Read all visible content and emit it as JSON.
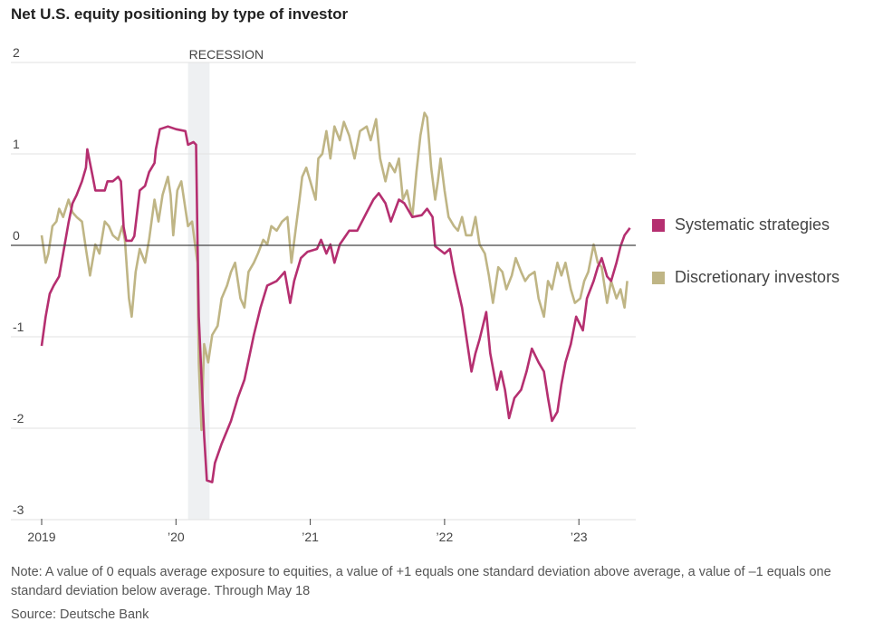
{
  "chart_data": {
    "type": "line",
    "title": "Net U.S. equity positioning by type of investor",
    "xlabel": "",
    "ylabel": "",
    "x_unit": "year",
    "xlim": [
      2019.0,
      2023.38
    ],
    "ylim": [
      -3,
      2
    ],
    "y_ticks": [
      2,
      1,
      0,
      -1,
      -2,
      -3
    ],
    "y_tick_labels": [
      "2",
      "1",
      "0",
      "-1",
      "-2",
      "-3"
    ],
    "x_ticks": [
      2019,
      2020,
      2021,
      2022,
      2023
    ],
    "x_tick_labels": [
      "2019",
      "’20",
      "’21",
      "’22",
      "’23"
    ],
    "grid": "horizontal",
    "legend_placement": "right",
    "annotation": {
      "label": "RECESSION",
      "x_start": 2020.09,
      "x_end": 2020.25,
      "color": "#eef0f2"
    },
    "zero_line_color": "#444444",
    "series": [
      {
        "name": "Systematic strategies",
        "color": "#b52f70",
        "points": [
          [
            2019.0,
            -1.1
          ],
          [
            2019.03,
            -0.78
          ],
          [
            2019.06,
            -0.53
          ],
          [
            2019.09,
            -0.44
          ],
          [
            2019.13,
            -0.34
          ],
          [
            2019.2,
            0.25
          ],
          [
            2019.23,
            0.46
          ],
          [
            2019.26,
            0.55
          ],
          [
            2019.3,
            0.7
          ],
          [
            2019.33,
            0.85
          ],
          [
            2019.34,
            1.05
          ],
          [
            2019.36,
            0.9
          ],
          [
            2019.38,
            0.75
          ],
          [
            2019.4,
            0.6
          ],
          [
            2019.47,
            0.6
          ],
          [
            2019.49,
            0.7
          ],
          [
            2019.53,
            0.7
          ],
          [
            2019.57,
            0.75
          ],
          [
            2019.59,
            0.7
          ],
          [
            2019.61,
            0.2
          ],
          [
            2019.63,
            0.05
          ],
          [
            2019.67,
            0.05
          ],
          [
            2019.69,
            0.1
          ],
          [
            2019.71,
            0.35
          ],
          [
            2019.73,
            0.6
          ],
          [
            2019.77,
            0.65
          ],
          [
            2019.8,
            0.8
          ],
          [
            2019.84,
            0.9
          ],
          [
            2019.85,
            1.05
          ],
          [
            2019.88,
            1.27
          ],
          [
            2019.94,
            1.3
          ],
          [
            2020.0,
            1.27
          ],
          [
            2020.07,
            1.25
          ],
          [
            2020.09,
            1.1
          ],
          [
            2020.13,
            1.13
          ],
          [
            2020.15,
            1.1
          ],
          [
            2020.16,
            0.1
          ],
          [
            2020.17,
            -0.78
          ],
          [
            2020.21,
            -2.08
          ],
          [
            2020.23,
            -2.57
          ],
          [
            2020.27,
            -2.59
          ],
          [
            2020.29,
            -2.38
          ],
          [
            2020.34,
            -2.17
          ],
          [
            2020.41,
            -1.92
          ],
          [
            2020.46,
            -1.67
          ],
          [
            2020.51,
            -1.47
          ],
          [
            2020.58,
            -0.98
          ],
          [
            2020.63,
            -0.68
          ],
          [
            2020.68,
            -0.44
          ],
          [
            2020.75,
            -0.39
          ],
          [
            2020.81,
            -0.29
          ],
          [
            2020.85,
            -0.63
          ],
          [
            2020.88,
            -0.39
          ],
          [
            2020.93,
            -0.14
          ],
          [
            2020.98,
            -0.07
          ],
          [
            2021.05,
            -0.04
          ],
          [
            2021.08,
            0.06
          ],
          [
            2021.12,
            -0.09
          ],
          [
            2021.15,
            0.01
          ],
          [
            2021.18,
            -0.19
          ],
          [
            2021.22,
            0.01
          ],
          [
            2021.29,
            0.16
          ],
          [
            2021.35,
            0.16
          ],
          [
            2021.42,
            0.36
          ],
          [
            2021.47,
            0.5
          ],
          [
            2021.51,
            0.57
          ],
          [
            2021.56,
            0.46
          ],
          [
            2021.6,
            0.26
          ],
          [
            2021.66,
            0.5
          ],
          [
            2021.7,
            0.46
          ],
          [
            2021.76,
            0.31
          ],
          [
            2021.83,
            0.33
          ],
          [
            2021.87,
            0.4
          ],
          [
            2021.91,
            0.31
          ],
          [
            2021.93,
            -0.01
          ],
          [
            2022.0,
            -0.09
          ],
          [
            2022.04,
            -0.04
          ],
          [
            2022.07,
            -0.29
          ],
          [
            2022.13,
            -0.68
          ],
          [
            2022.16,
            -0.98
          ],
          [
            2022.2,
            -1.38
          ],
          [
            2022.23,
            -1.18
          ],
          [
            2022.26,
            -1.03
          ],
          [
            2022.31,
            -0.73
          ],
          [
            2022.34,
            -1.18
          ],
          [
            2022.39,
            -1.58
          ],
          [
            2022.42,
            -1.38
          ],
          [
            2022.45,
            -1.58
          ],
          [
            2022.48,
            -1.89
          ],
          [
            2022.52,
            -1.67
          ],
          [
            2022.57,
            -1.58
          ],
          [
            2022.61,
            -1.38
          ],
          [
            2022.65,
            -1.13
          ],
          [
            2022.7,
            -1.28
          ],
          [
            2022.74,
            -1.38
          ],
          [
            2022.77,
            -1.67
          ],
          [
            2022.8,
            -1.92
          ],
          [
            2022.84,
            -1.82
          ],
          [
            2022.87,
            -1.52
          ],
          [
            2022.9,
            -1.28
          ],
          [
            2022.94,
            -1.08
          ],
          [
            2022.98,
            -0.78
          ],
          [
            2023.03,
            -0.93
          ],
          [
            2023.06,
            -0.58
          ],
          [
            2023.11,
            -0.39
          ],
          [
            2023.14,
            -0.24
          ],
          [
            2023.17,
            -0.14
          ],
          [
            2023.21,
            -0.34
          ],
          [
            2023.24,
            -0.39
          ],
          [
            2023.28,
            -0.19
          ],
          [
            2023.31,
            -0.01
          ],
          [
            2023.34,
            0.11
          ],
          [
            2023.38,
            0.19
          ]
        ]
      },
      {
        "name": "Discretionary investors",
        "color": "#bfb585",
        "points": [
          [
            2019.0,
            0.11
          ],
          [
            2019.03,
            -0.19
          ],
          [
            2019.05,
            -0.09
          ],
          [
            2019.08,
            0.21
          ],
          [
            2019.11,
            0.26
          ],
          [
            2019.13,
            0.4
          ],
          [
            2019.16,
            0.31
          ],
          [
            2019.2,
            0.5
          ],
          [
            2019.23,
            0.36
          ],
          [
            2019.26,
            0.31
          ],
          [
            2019.3,
            0.26
          ],
          [
            2019.33,
            -0.04
          ],
          [
            2019.36,
            -0.33
          ],
          [
            2019.4,
            0.01
          ],
          [
            2019.43,
            -0.09
          ],
          [
            2019.47,
            0.26
          ],
          [
            2019.5,
            0.21
          ],
          [
            2019.53,
            0.11
          ],
          [
            2019.57,
            0.06
          ],
          [
            2019.6,
            0.21
          ],
          [
            2019.62,
            0.06
          ],
          [
            2019.65,
            -0.58
          ],
          [
            2019.67,
            -0.78
          ],
          [
            2019.7,
            -0.29
          ],
          [
            2019.73,
            -0.04
          ],
          [
            2019.77,
            -0.19
          ],
          [
            2019.8,
            0.06
          ],
          [
            2019.84,
            0.5
          ],
          [
            2019.87,
            0.26
          ],
          [
            2019.9,
            0.55
          ],
          [
            2019.94,
            0.75
          ],
          [
            2019.96,
            0.55
          ],
          [
            2019.98,
            0.11
          ],
          [
            2020.01,
            0.6
          ],
          [
            2020.04,
            0.7
          ],
          [
            2020.07,
            0.4
          ],
          [
            2020.09,
            0.21
          ],
          [
            2020.12,
            0.26
          ],
          [
            2020.14,
            0.03
          ],
          [
            2020.16,
            -0.19
          ],
          [
            2020.17,
            -1.29
          ],
          [
            2020.19,
            -2.02
          ],
          [
            2020.21,
            -1.08
          ],
          [
            2020.24,
            -1.28
          ],
          [
            2020.27,
            -0.98
          ],
          [
            2020.31,
            -0.88
          ],
          [
            2020.34,
            -0.58
          ],
          [
            2020.38,
            -0.44
          ],
          [
            2020.41,
            -0.29
          ],
          [
            2020.44,
            -0.19
          ],
          [
            2020.48,
            -0.58
          ],
          [
            2020.51,
            -0.68
          ],
          [
            2020.54,
            -0.29
          ],
          [
            2020.58,
            -0.19
          ],
          [
            2020.61,
            -0.09
          ],
          [
            2020.65,
            0.06
          ],
          [
            2020.68,
            0.01
          ],
          [
            2020.71,
            0.21
          ],
          [
            2020.75,
            0.16
          ],
          [
            2020.79,
            0.26
          ],
          [
            2020.83,
            0.31
          ],
          [
            2020.86,
            -0.19
          ],
          [
            2020.89,
            0.16
          ],
          [
            2020.92,
            0.5
          ],
          [
            2020.94,
            0.75
          ],
          [
            2020.97,
            0.85
          ],
          [
            2021.0,
            0.7
          ],
          [
            2021.04,
            0.5
          ],
          [
            2021.06,
            0.95
          ],
          [
            2021.09,
            1.0
          ],
          [
            2021.12,
            1.25
          ],
          [
            2021.15,
            0.95
          ],
          [
            2021.18,
            1.3
          ],
          [
            2021.22,
            1.15
          ],
          [
            2021.25,
            1.35
          ],
          [
            2021.29,
            1.2
          ],
          [
            2021.33,
            0.95
          ],
          [
            2021.37,
            1.25
          ],
          [
            2021.42,
            1.3
          ],
          [
            2021.45,
            1.15
          ],
          [
            2021.49,
            1.38
          ],
          [
            2021.52,
            0.95
          ],
          [
            2021.56,
            0.7
          ],
          [
            2021.59,
            0.9
          ],
          [
            2021.63,
            0.8
          ],
          [
            2021.66,
            0.95
          ],
          [
            2021.69,
            0.5
          ],
          [
            2021.72,
            0.6
          ],
          [
            2021.76,
            0.31
          ],
          [
            2021.79,
            0.8
          ],
          [
            2021.82,
            1.2
          ],
          [
            2021.85,
            1.45
          ],
          [
            2021.87,
            1.4
          ],
          [
            2021.9,
            0.85
          ],
          [
            2021.93,
            0.5
          ],
          [
            2021.95,
            0.7
          ],
          [
            2021.97,
            0.95
          ],
          [
            2022.0,
            0.6
          ],
          [
            2022.03,
            0.31
          ],
          [
            2022.07,
            0.21
          ],
          [
            2022.1,
            0.16
          ],
          [
            2022.13,
            0.31
          ],
          [
            2022.16,
            0.11
          ],
          [
            2022.2,
            0.11
          ],
          [
            2022.23,
            0.31
          ],
          [
            2022.26,
            0.01
          ],
          [
            2022.3,
            -0.09
          ],
          [
            2022.33,
            -0.33
          ],
          [
            2022.36,
            -0.63
          ],
          [
            2022.4,
            -0.24
          ],
          [
            2022.43,
            -0.29
          ],
          [
            2022.46,
            -0.48
          ],
          [
            2022.5,
            -0.33
          ],
          [
            2022.53,
            -0.14
          ],
          [
            2022.57,
            -0.29
          ],
          [
            2022.6,
            -0.39
          ],
          [
            2022.63,
            -0.33
          ],
          [
            2022.67,
            -0.29
          ],
          [
            2022.7,
            -0.58
          ],
          [
            2022.74,
            -0.78
          ],
          [
            2022.77,
            -0.39
          ],
          [
            2022.8,
            -0.48
          ],
          [
            2022.84,
            -0.19
          ],
          [
            2022.87,
            -0.33
          ],
          [
            2022.9,
            -0.19
          ],
          [
            2022.94,
            -0.48
          ],
          [
            2022.97,
            -0.63
          ],
          [
            2023.01,
            -0.58
          ],
          [
            2023.04,
            -0.39
          ],
          [
            2023.07,
            -0.29
          ],
          [
            2023.11,
            0.01
          ],
          [
            2023.14,
            -0.19
          ],
          [
            2023.17,
            -0.24
          ],
          [
            2023.21,
            -0.63
          ],
          [
            2023.24,
            -0.39
          ],
          [
            2023.28,
            -0.58
          ],
          [
            2023.31,
            -0.48
          ],
          [
            2023.34,
            -0.68
          ],
          [
            2023.36,
            -0.39
          ]
        ]
      }
    ]
  },
  "notes": {
    "note": "Note: A value of 0 equals average exposure to equities, a value of +1 equals one standard deviation above average, a value of –1 equals one standard deviation below average. Through May 18",
    "source": "Source: Deutsche Bank"
  }
}
